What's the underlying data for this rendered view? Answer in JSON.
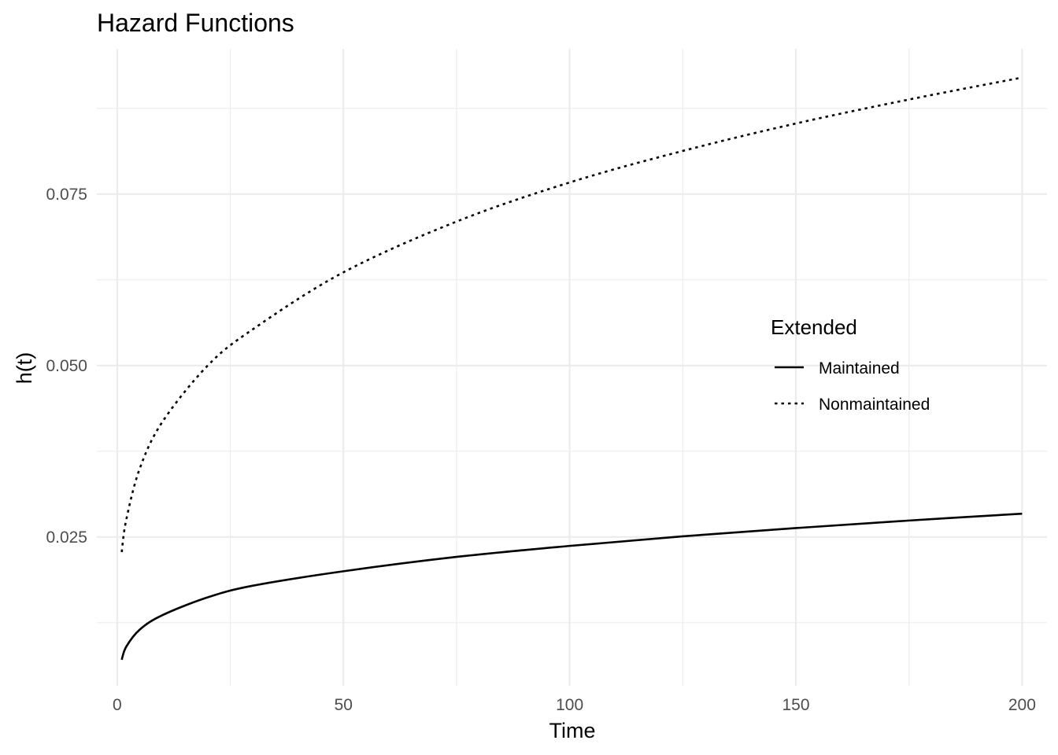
{
  "chart_data": {
    "type": "line",
    "title": "Hazard Functions",
    "xlabel": "Time",
    "ylabel": "h(t)",
    "xlim": [
      -4.5,
      205.5
    ],
    "ylim": [
      0.0033,
      0.0962
    ],
    "x_major_ticks": [
      0,
      50,
      100,
      150,
      200
    ],
    "x_minor_ticks": [
      25,
      75,
      125,
      175
    ],
    "x_tick_labels": [
      "0",
      "50",
      "100",
      "150",
      "200"
    ],
    "y_major_ticks": [
      0.025,
      0.05,
      0.075
    ],
    "y_minor_ticks": [
      0.0125,
      0.0375,
      0.0625,
      0.0875
    ],
    "y_tick_labels": [
      "0.025",
      "0.050",
      "0.075"
    ],
    "grid": true,
    "legend": {
      "title": "Extended",
      "placement": "right-center",
      "entries": [
        {
          "label": "Maintained",
          "linestyle": "solid"
        },
        {
          "label": "Nonmaintained",
          "linestyle": "dotted"
        }
      ]
    },
    "series": [
      {
        "name": "Maintained",
        "linestyle": "solid",
        "color": "#000000",
        "x": [
          1,
          2,
          5,
          10,
          20,
          30,
          50,
          75,
          100,
          125,
          150,
          175,
          200
        ],
        "y": [
          0.0071,
          0.009,
          0.0115,
          0.0136,
          0.0162,
          0.0179,
          0.02,
          0.0221,
          0.0237,
          0.0251,
          0.0263,
          0.0274,
          0.0284
        ]
      },
      {
        "name": "Nonmaintained",
        "linestyle": "dotted",
        "color": "#000000",
        "x": [
          1,
          2,
          5,
          10,
          20,
          30,
          50,
          75,
          100,
          125,
          150,
          175,
          200
        ],
        "y": [
          0.0228,
          0.0275,
          0.035,
          0.0418,
          0.05,
          0.0553,
          0.0636,
          0.071,
          0.0767,
          0.0813,
          0.0853,
          0.0888,
          0.092
        ]
      }
    ]
  }
}
